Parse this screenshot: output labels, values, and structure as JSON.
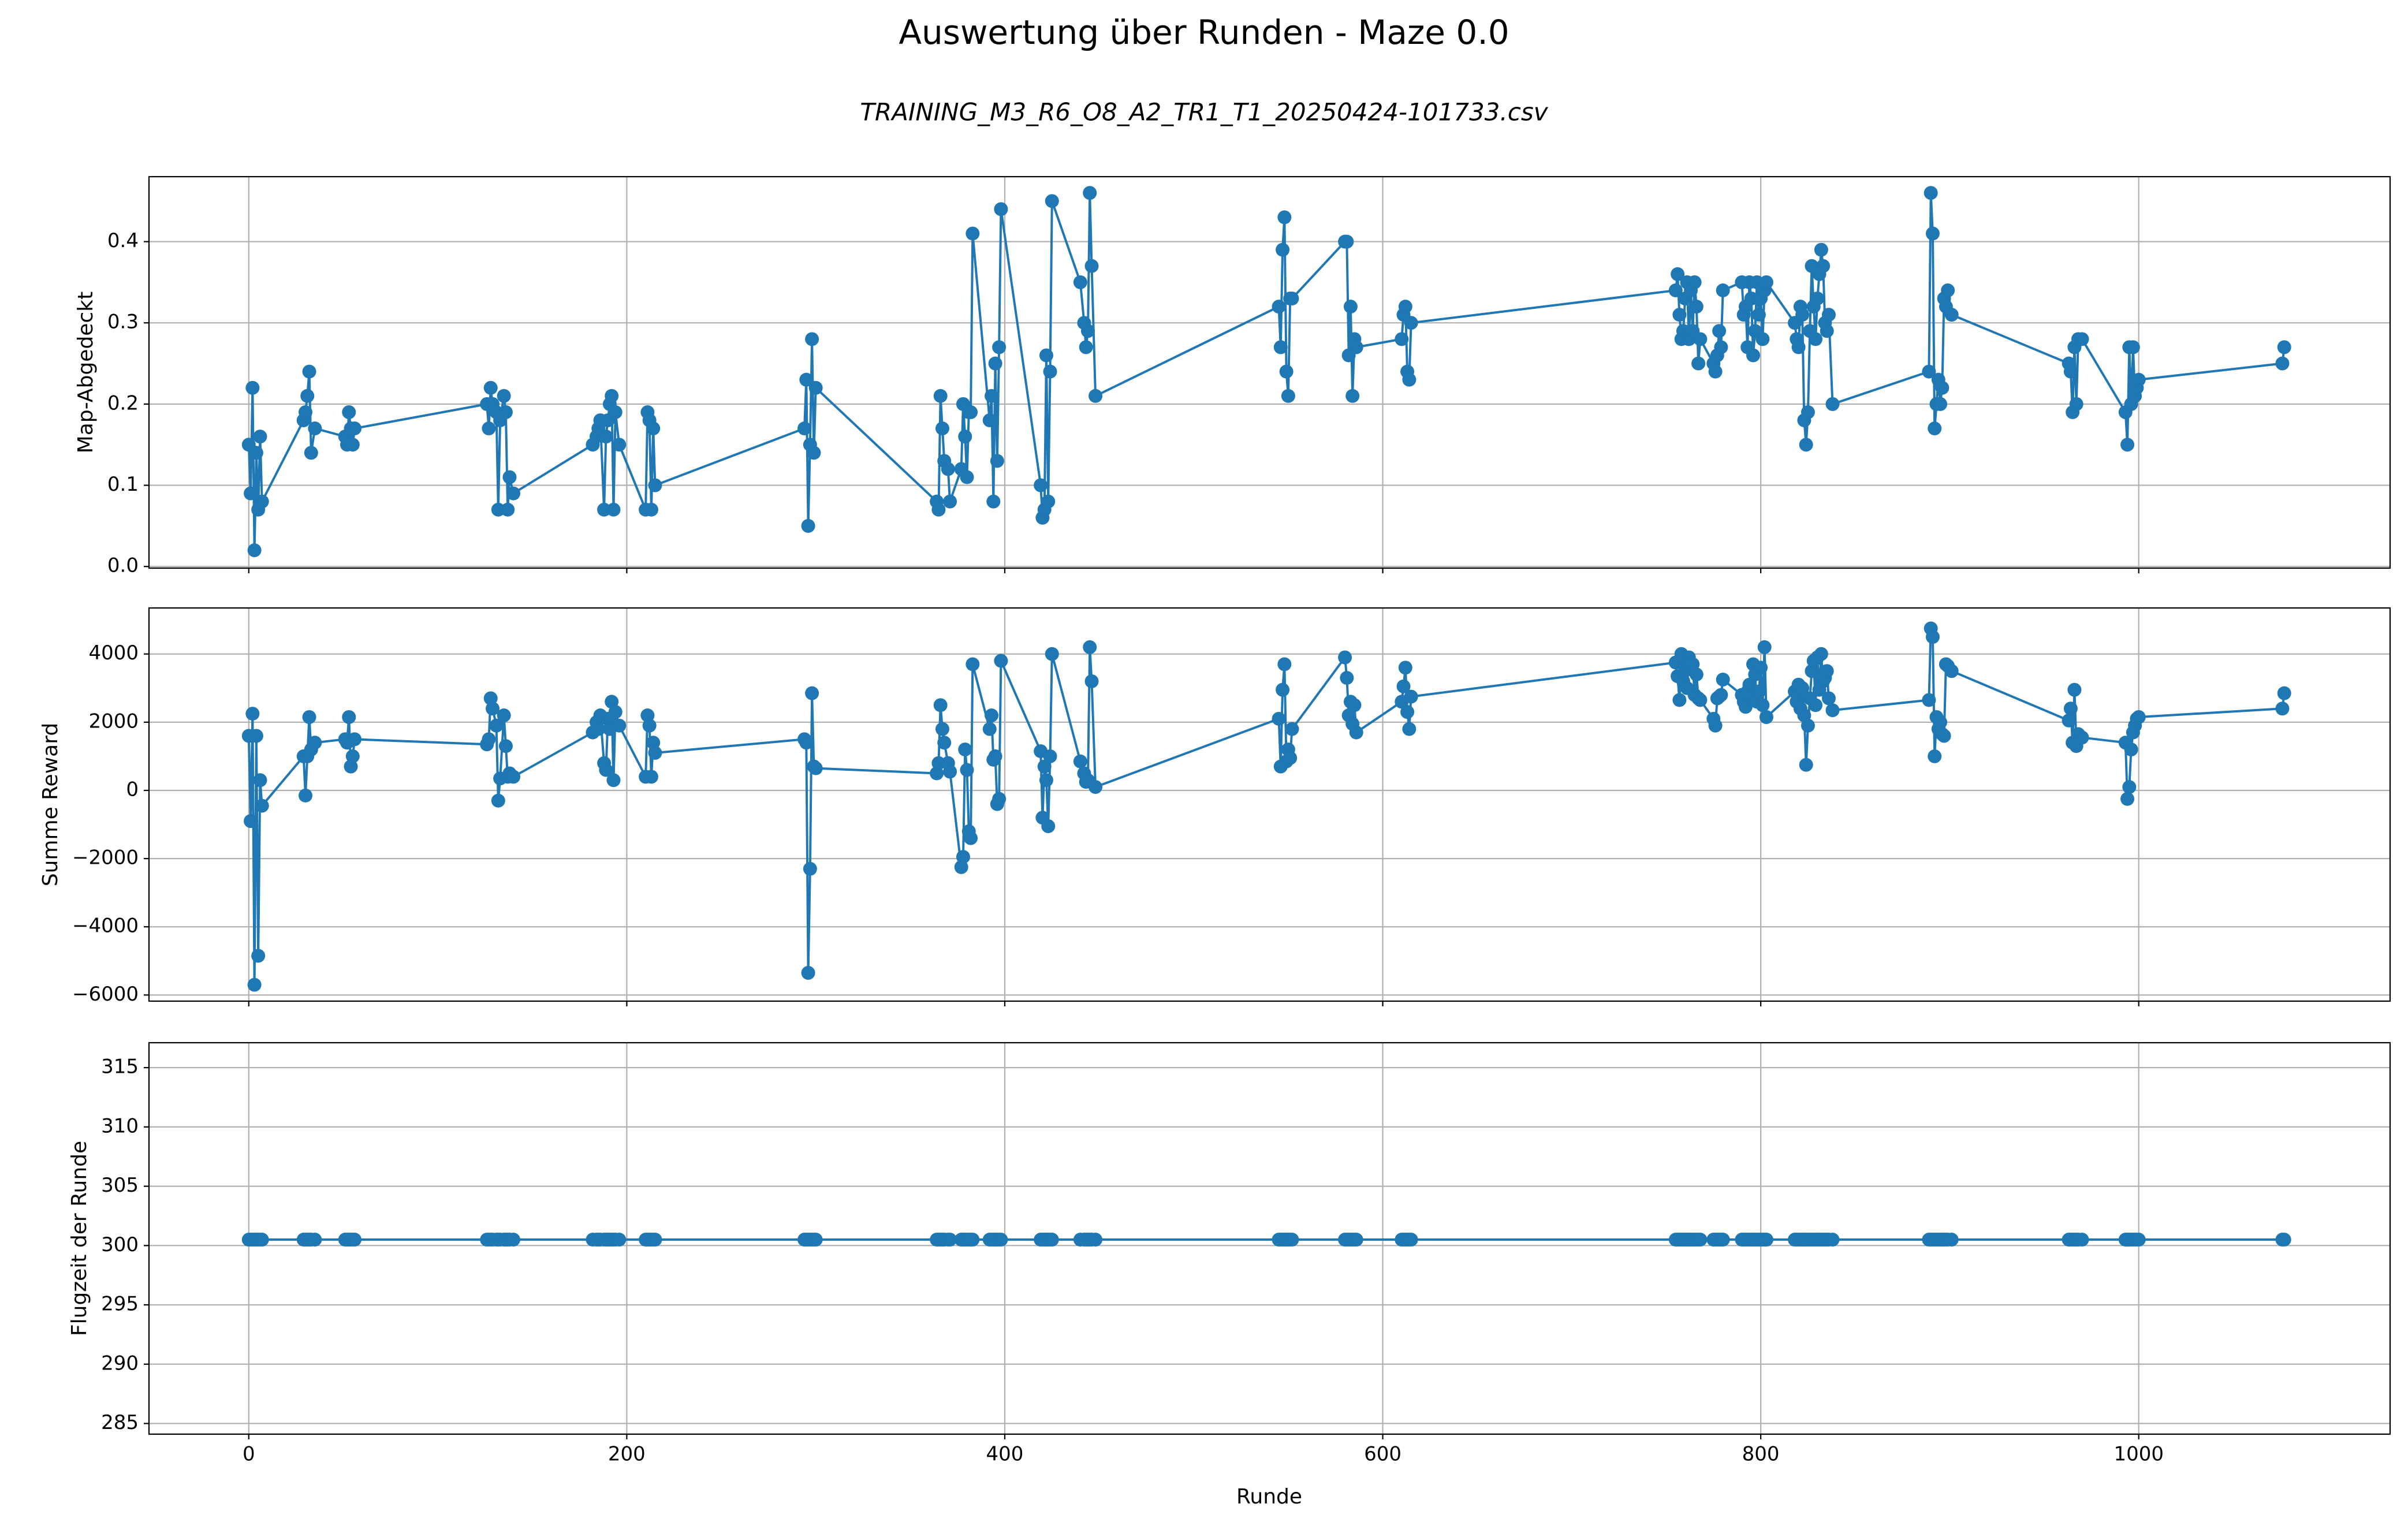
{
  "title": "Auswertung über Runden - Maze 0.0",
  "subtitle": "TRAINING_M3_R6_O8_A2_TR1_T1_20250424-101733.csv",
  "chart_data": {
    "type": "line",
    "xlabel": "Runde",
    "grid": true,
    "marker": "circle",
    "xlim": [
      -52.8,
      1133
    ],
    "xticks": [
      0,
      200,
      400,
      600,
      800,
      1000
    ],
    "x": [
      0,
      1,
      2,
      3,
      4,
      5,
      6,
      7,
      29,
      30,
      31,
      32,
      33,
      35,
      51,
      52,
      53,
      54,
      55,
      56,
      126,
      127,
      128,
      129,
      131,
      132,
      133,
      135,
      136,
      137,
      138,
      140,
      182,
      184,
      185,
      186,
      188,
      189,
      190,
      191,
      192,
      193,
      194,
      196,
      210,
      211,
      212,
      213,
      214,
      215,
      294,
      295,
      296,
      297,
      298,
      299,
      300,
      364,
      365,
      366,
      367,
      368,
      370,
      371,
      377,
      378,
      379,
      380,
      381,
      382,
      383,
      392,
      393,
      394,
      395,
      396,
      397,
      398,
      419,
      420,
      421,
      422,
      423,
      424,
      425,
      440,
      442,
      443,
      444,
      445,
      446,
      448,
      545,
      546,
      547,
      548,
      549,
      550,
      551,
      552,
      580,
      581,
      582,
      583,
      584,
      585,
      586,
      610,
      611,
      612,
      613,
      614,
      615,
      755,
      756,
      757,
      758,
      759,
      760,
      761,
      762,
      763,
      764,
      765,
      766,
      767,
      768,
      775,
      776,
      777,
      778,
      779,
      780,
      790,
      791,
      792,
      793,
      794,
      795,
      796,
      797,
      798,
      799,
      800,
      801,
      802,
      803,
      818,
      819,
      820,
      821,
      822,
      823,
      824,
      825,
      826,
      827,
      828,
      829,
      830,
      831,
      832,
      833,
      834,
      835,
      836,
      838,
      889,
      890,
      891,
      892,
      893,
      894,
      895,
      896,
      897,
      898,
      899,
      901,
      963,
      964,
      965,
      966,
      967,
      968,
      970,
      993,
      994,
      995,
      996,
      997,
      998,
      999,
      1000,
      1076,
      1077
    ],
    "series": [
      {
        "ylabel": "Map-Abgedeckt",
        "color": "#1f77b4",
        "ylim": [
          -0.002,
          0.48
        ],
        "yticks": [
          {
            "value": 0,
            "label": "0.0"
          },
          0.1,
          0.2,
          0.3,
          0.4
        ],
        "values": [
          0.15,
          0.09,
          0.22,
          0.02,
          0.14,
          0.07,
          0.16,
          0.08,
          0.18,
          0.19,
          0.21,
          0.24,
          0.14,
          0.17,
          0.16,
          0.15,
          0.19,
          0.17,
          0.15,
          0.17,
          0.2,
          0.17,
          0.22,
          0.2,
          0.19,
          0.07,
          0.18,
          0.21,
          0.19,
          0.07,
          0.11,
          0.09,
          0.15,
          0.16,
          0.17,
          0.18,
          0.07,
          0.16,
          0.18,
          0.2,
          0.21,
          0.07,
          0.19,
          0.15,
          0.07,
          0.19,
          0.18,
          0.07,
          0.17,
          0.1,
          0.17,
          0.23,
          0.05,
          0.15,
          0.28,
          0.14,
          0.22,
          0.08,
          0.07,
          0.21,
          0.17,
          0.13,
          0.12,
          0.08,
          0.12,
          0.2,
          0.16,
          0.11,
          0.19,
          0.19,
          0.41,
          0.18,
          0.21,
          0.08,
          0.25,
          0.13,
          0.27,
          0.44,
          0.1,
          0.06,
          0.07,
          0.26,
          0.08,
          0.24,
          0.45,
          0.35,
          0.3,
          0.27,
          0.29,
          0.46,
          0.37,
          0.21,
          0.32,
          0.27,
          0.39,
          0.43,
          0.24,
          0.21,
          0.33,
          0.33,
          0.4,
          0.4,
          0.26,
          0.32,
          0.21,
          0.28,
          0.27,
          0.28,
          0.31,
          0.32,
          0.24,
          0.23,
          0.3,
          0.34,
          0.36,
          0.31,
          0.28,
          0.29,
          0.33,
          0.35,
          0.28,
          0.34,
          0.29,
          0.35,
          0.32,
          0.25,
          0.28,
          0.25,
          0.24,
          0.26,
          0.29,
          0.27,
          0.34,
          0.35,
          0.31,
          0.32,
          0.27,
          0.35,
          0.33,
          0.26,
          0.29,
          0.35,
          0.31,
          0.33,
          0.28,
          0.34,
          0.35,
          0.3,
          0.28,
          0.27,
          0.32,
          0.31,
          0.18,
          0.15,
          0.19,
          0.29,
          0.37,
          0.32,
          0.28,
          0.33,
          0.36,
          0.39,
          0.37,
          0.3,
          0.29,
          0.31,
          0.2,
          0.24,
          0.46,
          0.41,
          0.17,
          0.2,
          0.23,
          0.2,
          0.22,
          0.33,
          0.32,
          0.34,
          0.31,
          0.25,
          0.24,
          0.19,
          0.27,
          0.2,
          0.28,
          0.28,
          0.19,
          0.15,
          0.27,
          0.2,
          0.27,
          0.21,
          0.22,
          0.23,
          0.25,
          0.27
        ]
      },
      {
        "ylabel": "Summe Reward",
        "color": "#1f77b4",
        "ylim": [
          -6180,
          5350
        ],
        "yticks": [
          {
            "value": -6000,
            "label": "−6000"
          },
          {
            "value": -4000,
            "label": "−4000"
          },
          {
            "value": -2000,
            "label": "−2000"
          },
          0,
          2000,
          4000
        ],
        "values": [
          1600,
          -900,
          2250,
          -5700,
          1600,
          -4850,
          300,
          -450,
          1000,
          -150,
          1000,
          2150,
          1200,
          1400,
          1500,
          1400,
          2150,
          700,
          1000,
          1500,
          1350,
          1500,
          2700,
          2400,
          1900,
          -300,
          350,
          2200,
          1300,
          400,
          500,
          400,
          1700,
          2000,
          1800,
          2200,
          800,
          600,
          2100,
          1800,
          2600,
          300,
          2300,
          1900,
          400,
          2200,
          1900,
          400,
          1400,
          1100,
          1500,
          1400,
          -5350,
          -2300,
          2850,
          700,
          650,
          500,
          800,
          2500,
          1800,
          1400,
          800,
          550,
          -2250,
          -1950,
          1200,
          600,
          -1200,
          -1400,
          3700,
          1800,
          2200,
          900,
          1000,
          -400,
          -250,
          3800,
          1150,
          -800,
          700,
          300,
          -1050,
          1000,
          4000,
          850,
          500,
          250,
          300,
          4200,
          3200,
          100,
          2100,
          700,
          2950,
          3700,
          850,
          1200,
          950,
          1800,
          3900,
          3300,
          2200,
          2600,
          1950,
          2500,
          1700,
          2600,
          3050,
          3600,
          2300,
          1800,
          2750,
          3750,
          3350,
          2650,
          4000,
          3200,
          3600,
          3000,
          3900,
          3550,
          3700,
          2800,
          3400,
          2700,
          2650,
          2100,
          1900,
          2700,
          2750,
          2800,
          3250,
          2800,
          2600,
          2450,
          2900,
          3100,
          2700,
          3700,
          3400,
          2600,
          2900,
          3600,
          2500,
          4200,
          2150,
          2900,
          2600,
          3100,
          2400,
          3000,
          2200,
          750,
          1900,
          2700,
          3500,
          3800,
          2500,
          3900,
          2950,
          4000,
          3200,
          3300,
          3500,
          2700,
          2350,
          2650,
          4750,
          4500,
          1000,
          2150,
          1800,
          2000,
          1650,
          1600,
          3700,
          3650,
          3500,
          2050,
          2400,
          1400,
          2950,
          1300,
          1650,
          1550,
          1400,
          -250,
          100,
          1200,
          1700,
          1900,
          2100,
          2150,
          2400,
          2850
        ]
      },
      {
        "ylabel": "Flugzeit der Runde",
        "color": "#1f77b4",
        "ylim": [
          284.1,
          317.1
        ],
        "yticks": [
          285,
          290,
          295,
          300,
          305,
          310,
          315
        ],
        "values": [
          300.5,
          300.5,
          300.5,
          300.5,
          300.5,
          300.5,
          300.5,
          300.5,
          300.5,
          300.5,
          300.5,
          300.5,
          300.5,
          300.5,
          300.5,
          300.5,
          300.5,
          300.5,
          300.5,
          300.5,
          300.5,
          300.5,
          300.5,
          300.5,
          300.5,
          300.5,
          300.5,
          300.5,
          300.5,
          300.5,
          300.5,
          300.5,
          300.5,
          300.5,
          300.5,
          300.5,
          300.5,
          300.5,
          300.5,
          300.5,
          300.5,
          300.5,
          300.5,
          300.5,
          300.5,
          300.5,
          300.5,
          300.5,
          300.5,
          300.5,
          300.5,
          300.5,
          300.5,
          300.5,
          300.5,
          300.5,
          300.5,
          300.5,
          300.5,
          300.5,
          300.5,
          300.5,
          300.5,
          300.5,
          300.5,
          300.5,
          300.5,
          300.5,
          300.5,
          300.5,
          300.5,
          300.5,
          300.5,
          300.5,
          300.5,
          300.5,
          300.5,
          300.5,
          300.5,
          300.5,
          300.5,
          300.5,
          300.5,
          300.5,
          300.5,
          300.5,
          300.5,
          300.5,
          300.5,
          300.5,
          300.5,
          300.5,
          300.5,
          300.5,
          300.5,
          300.5,
          300.5,
          300.5,
          300.5,
          300.5,
          300.5,
          300.5,
          300.5,
          300.5,
          300.5,
          300.5,
          300.5,
          300.5,
          300.5,
          300.5,
          300.5,
          300.5,
          300.5,
          300.5,
          300.5,
          300.5,
          300.5,
          300.5,
          300.5,
          300.5,
          300.5,
          300.5,
          300.5,
          300.5,
          300.5,
          300.5,
          300.5,
          300.5,
          300.5,
          300.5,
          300.5,
          300.5,
          300.5,
          300.5,
          300.5,
          300.5,
          300.5,
          300.5,
          300.5,
          300.5,
          300.5,
          300.5,
          300.5,
          300.5,
          300.5,
          300.5,
          300.5,
          300.5,
          300.5,
          300.5,
          300.5,
          300.5,
          300.5,
          300.5,
          300.5,
          300.5,
          300.5,
          300.5,
          300.5,
          300.5,
          300.5,
          300.5,
          300.5,
          300.5,
          300.5,
          300.5,
          300.5,
          300.5,
          300.5,
          300.5,
          300.5,
          300.5,
          300.5,
          300.5,
          300.5,
          300.5,
          300.5,
          300.5,
          300.5,
          300.5,
          300.5,
          300.5,
          300.5,
          300.5,
          300.5,
          300.5,
          300.5,
          300.5,
          300.5,
          300.5,
          300.5,
          300.5,
          300.5,
          300.5,
          300.5,
          300.5
        ]
      }
    ]
  }
}
